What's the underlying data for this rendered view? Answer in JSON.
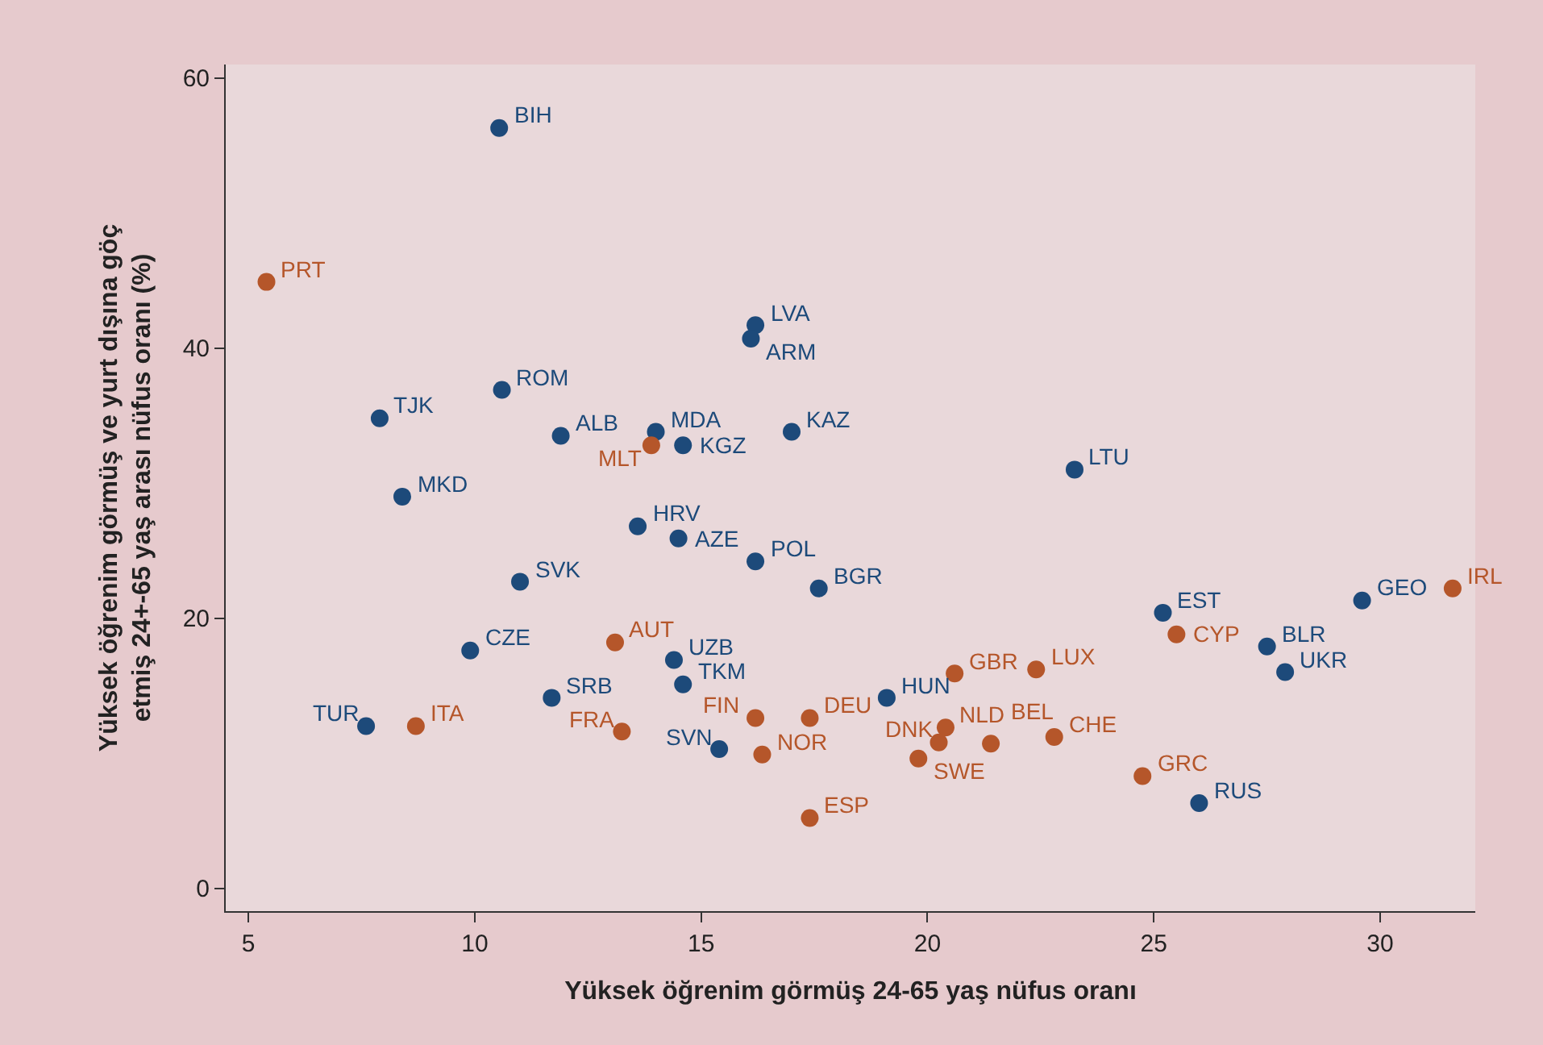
{
  "chart_data": {
    "type": "scatter",
    "xlabel": "Yüksek öğrenim görmüş 24-65 yaş nüfus oranı",
    "ylabel": "Yüksek öğrenim görmüş ve yurt dışına göç\netmiş 24+-65 yaş arası nüfus oranı (%)",
    "xlim": [
      4.5,
      32.1
    ],
    "ylim": [
      -1.7,
      61
    ],
    "xticks": [
      5,
      10,
      15,
      20,
      25,
      30
    ],
    "yticks": [
      0,
      20,
      40,
      60
    ],
    "grid": false,
    "marker": "circle",
    "series": [
      {
        "color": "#1d4a7a",
        "x": [
          10.54,
          16.2,
          16.1,
          7.9,
          10.6,
          11.9,
          14.0,
          14.6,
          17.0,
          8.4,
          23.25,
          13.6,
          14.5,
          16.2,
          17.6,
          11.0,
          9.9,
          14.4,
          14.6,
          11.7,
          7.6,
          15.4,
          19.1,
          25.2,
          27.5,
          27.9,
          29.6,
          26.0
        ],
        "values": [
          56.3,
          41.7,
          40.7,
          34.8,
          36.9,
          33.5,
          33.8,
          32.8,
          33.8,
          29.0,
          31.0,
          26.8,
          25.9,
          24.2,
          22.2,
          22.7,
          17.6,
          16.9,
          15.1,
          14.1,
          12.0,
          10.3,
          14.1,
          20.4,
          17.9,
          16.0,
          21.3,
          6.3
        ],
        "value_labels": [
          "BIH",
          "LVA",
          "ARM",
          "TJK",
          "ROM",
          "ALB",
          "MDA",
          "KGZ",
          "KAZ",
          "MKD",
          "LTU",
          "HRV",
          "AZE",
          "POL",
          "BGR",
          "SVK",
          "CZE",
          "UZB",
          "TKM",
          "SRB",
          "TUR",
          "SVN",
          "HUN",
          "EST",
          "BLR",
          "UKR",
          "GEO",
          "RUS"
        ]
      },
      {
        "color": "#b5562a",
        "x": [
          5.4,
          13.9,
          13.1,
          8.7,
          13.25,
          16.2,
          17.4,
          16.35,
          17.4,
          20.6,
          22.4,
          20.4,
          20.25,
          19.8,
          21.4,
          22.8,
          24.75,
          25.5,
          31.6
        ],
        "values": [
          44.9,
          32.8,
          18.2,
          12.0,
          11.6,
          12.6,
          12.6,
          9.9,
          5.2,
          15.9,
          16.2,
          11.9,
          10.8,
          9.6,
          10.7,
          11.2,
          8.3,
          18.8,
          22.2
        ],
        "value_labels": [
          "PRT",
          "MLT",
          "AUT",
          "ITA",
          "FRA",
          "FIN",
          "DEU",
          "NOR",
          "ESP",
          "GBR",
          "LUX",
          "NLD",
          "DNK",
          "SWE",
          "BEL",
          "CHE",
          "GRC",
          "CYP",
          "IRL"
        ]
      }
    ]
  }
}
